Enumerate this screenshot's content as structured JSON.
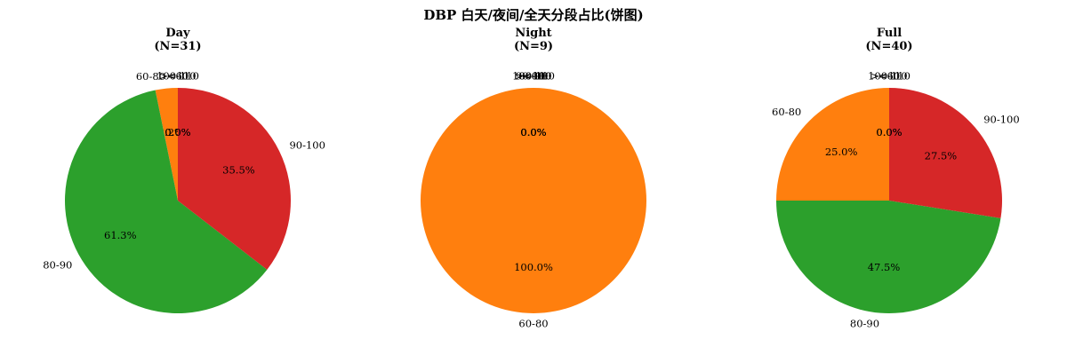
{
  "figure": {
    "title": "DBP 白天/夜间/全天分段占比(饼图)"
  },
  "chart_data": [
    {
      "type": "pie",
      "title": "Day",
      "subtitle": "(N=31)",
      "start_angle_deg": 90,
      "direction": "counterclockwise",
      "slices": [
        {
          "label": "<60",
          "value": 0.0,
          "pct_label": "0.0%",
          "color": "#1f77b4"
        },
        {
          "label": "60-80",
          "value": 3.2,
          "pct_label": "3.2%",
          "color": "#ff7f0e"
        },
        {
          "label": "80-90",
          "value": 61.3,
          "pct_label": "61.3%",
          "color": "#2ca02c"
        },
        {
          "label": "90-100",
          "value": 35.5,
          "pct_label": "35.5%",
          "color": "#d62728"
        },
        {
          "label": "100-110",
          "value": 0.0,
          "pct_label": "0.0%",
          "color": "#9467bd"
        },
        {
          "label": ">=110",
          "value": 0.0,
          "pct_label": "0.0%",
          "color": "#8c564b"
        }
      ]
    },
    {
      "type": "pie",
      "title": "Night",
      "subtitle": "(N=9)",
      "start_angle_deg": 90,
      "direction": "counterclockwise",
      "slices": [
        {
          "label": "<60",
          "value": 0.0,
          "pct_label": "0.0%",
          "color": "#1f77b4"
        },
        {
          "label": "60-80",
          "value": 100.0,
          "pct_label": "100.0%",
          "color": "#ff7f0e"
        },
        {
          "label": "80-90",
          "value": 0.0,
          "pct_label": "0.0%",
          "color": "#2ca02c"
        },
        {
          "label": "90-100",
          "value": 0.0,
          "pct_label": "0.0%",
          "color": "#d62728"
        },
        {
          "label": "100-110",
          "value": 0.0,
          "pct_label": "0.0%",
          "color": "#9467bd"
        },
        {
          "label": ">=110",
          "value": 0.0,
          "pct_label": "0.0%",
          "color": "#8c564b"
        }
      ]
    },
    {
      "type": "pie",
      "title": "Full",
      "subtitle": "(N=40)",
      "start_angle_deg": 90,
      "direction": "counterclockwise",
      "slices": [
        {
          "label": "<60",
          "value": 0.0,
          "pct_label": "0.0%",
          "color": "#1f77b4"
        },
        {
          "label": "60-80",
          "value": 25.0,
          "pct_label": "25.0%",
          "color": "#ff7f0e"
        },
        {
          "label": "80-90",
          "value": 47.5,
          "pct_label": "47.5%",
          "color": "#2ca02c"
        },
        {
          "label": "90-100",
          "value": 27.5,
          "pct_label": "27.5%",
          "color": "#d62728"
        },
        {
          "label": "100-110",
          "value": 0.0,
          "pct_label": "0.0%",
          "color": "#9467bd"
        },
        {
          "label": ">=110",
          "value": 0.0,
          "pct_label": "0.0%",
          "color": "#8c564b"
        }
      ]
    }
  ]
}
